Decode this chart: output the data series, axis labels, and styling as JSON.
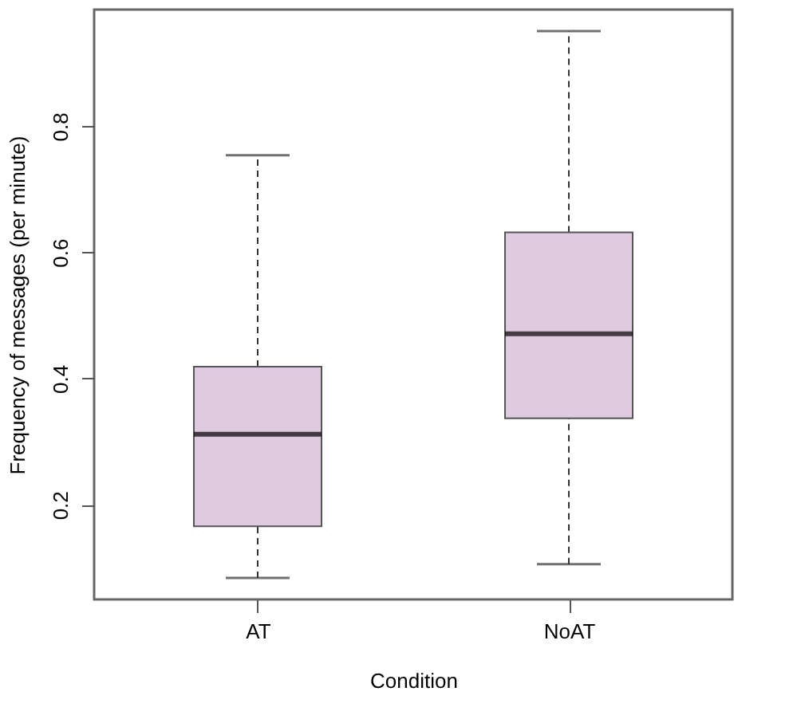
{
  "chart_data": {
    "type": "box",
    "xlabel": "Condition",
    "ylabel": "Frequency of messages (per minute)",
    "categories": [
      "AT",
      "NoAT"
    ],
    "color": "#dfcbdf",
    "boxes": [
      {
        "low": 0.084,
        "q1": 0.166,
        "median": 0.312,
        "q3": 0.419,
        "high": 0.754
      },
      {
        "low": 0.106,
        "q1": 0.337,
        "median": 0.471,
        "q3": 0.632,
        "high": 0.951
      }
    ],
    "ylim": [
      0.05,
      0.985
    ],
    "yticks": [
      0.2,
      0.4,
      0.6,
      0.8
    ],
    "grid": false
  }
}
